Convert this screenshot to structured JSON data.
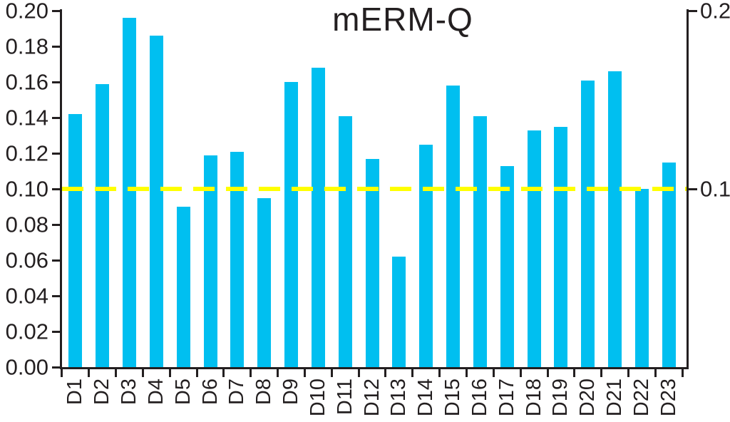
{
  "chart_data": {
    "type": "bar",
    "title": "mERM-Q",
    "categories": [
      "D1",
      "D2",
      "D3",
      "D4",
      "D5",
      "D6",
      "D7",
      "D8",
      "D9",
      "D10",
      "D11",
      "D12",
      "D13",
      "D14",
      "D15",
      "D16",
      "D17",
      "D18",
      "D19",
      "D20",
      "D21",
      "D22",
      "D23"
    ],
    "values": [
      0.142,
      0.159,
      0.196,
      0.186,
      0.09,
      0.119,
      0.121,
      0.095,
      0.16,
      0.168,
      0.141,
      0.117,
      0.062,
      0.125,
      0.158,
      0.141,
      0.113,
      0.133,
      0.135,
      0.161,
      0.166,
      0.1,
      0.115
    ],
    "bar_color": "#00bff0",
    "axis_color": "#231f20",
    "background_color": "#ffffff",
    "grid": "off",
    "legend": "none",
    "xlabel": "",
    "ylabel": "",
    "ylim": [
      0,
      0.2
    ],
    "left_axis": {
      "tick_labels": [
        "0.00",
        "0.02",
        "0.04",
        "0.06",
        "0.08",
        "0.10",
        "0.12",
        "0.14",
        "0.16",
        "0.18",
        "0.20"
      ],
      "tick_values": [
        0,
        0.02,
        0.04,
        0.06,
        0.08,
        0.1,
        0.12,
        0.14,
        0.16,
        0.18,
        0.2
      ]
    },
    "right_axis": {
      "tick_labels": [
        "0.1",
        "0.2"
      ],
      "tick_values": [
        0.1,
        0.2
      ]
    },
    "threshold_line": {
      "value": 0.1,
      "color": "#ffff00",
      "style": "dashed"
    }
  }
}
